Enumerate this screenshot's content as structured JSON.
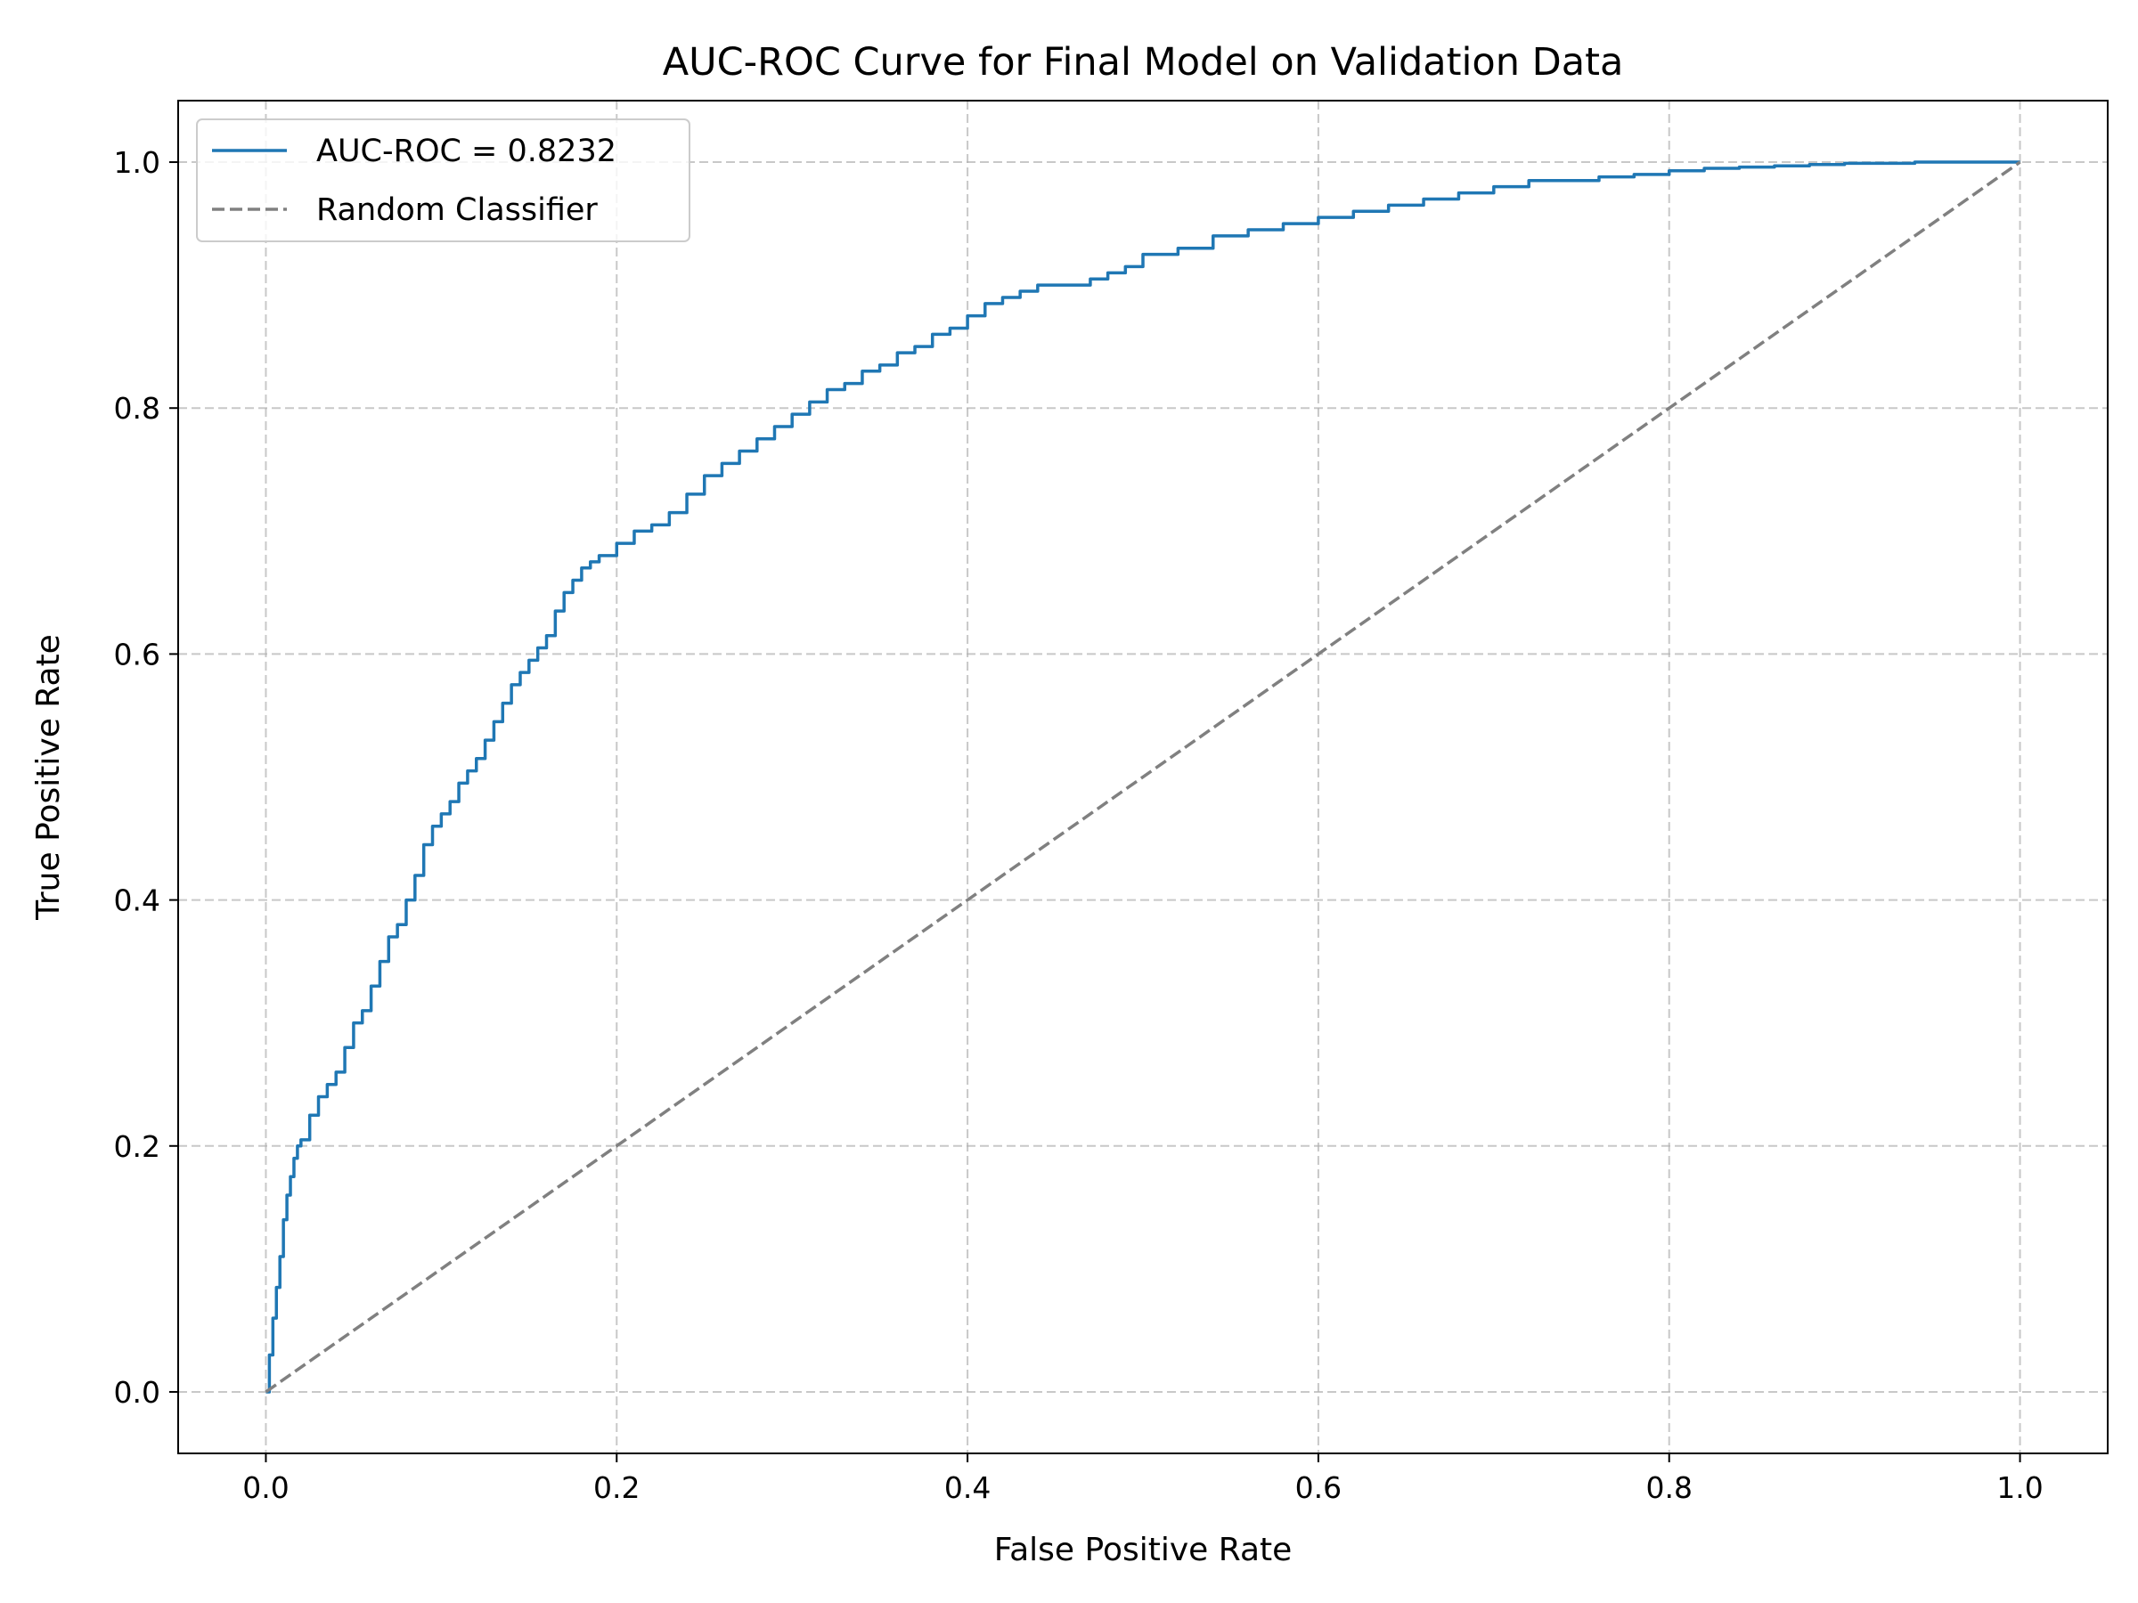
{
  "chart_data": {
    "type": "line",
    "title": "AUC-ROC Curve for Final Model on Validation Data",
    "xlabel": "False Positive Rate",
    "ylabel": "True Positive Rate",
    "xlim": [
      -0.05,
      1.05
    ],
    "ylim": [
      -0.05,
      1.05
    ],
    "grid": true,
    "grid_style": "dashed",
    "legend_position": "upper left",
    "x_ticks": [
      0.0,
      0.2,
      0.4,
      0.6,
      0.8,
      1.0
    ],
    "y_ticks": [
      0.0,
      0.2,
      0.4,
      0.6,
      0.8,
      1.0
    ],
    "x_tick_labels": [
      "0.0",
      "0.2",
      "0.4",
      "0.6",
      "0.8",
      "1.0"
    ],
    "y_tick_labels": [
      "0.0",
      "0.2",
      "0.4",
      "0.6",
      "0.8",
      "1.0"
    ],
    "series": [
      {
        "name": "AUC-ROC = 0.8232",
        "color": "#1f77b4",
        "line_style": "solid",
        "step": true,
        "x": [
          0.0,
          0.002,
          0.004,
          0.006,
          0.008,
          0.01,
          0.012,
          0.014,
          0.016,
          0.018,
          0.02,
          0.025,
          0.03,
          0.035,
          0.04,
          0.045,
          0.05,
          0.055,
          0.06,
          0.065,
          0.07,
          0.075,
          0.08,
          0.085,
          0.09,
          0.095,
          0.1,
          0.105,
          0.11,
          0.115,
          0.12,
          0.125,
          0.13,
          0.135,
          0.14,
          0.145,
          0.15,
          0.155,
          0.16,
          0.165,
          0.17,
          0.175,
          0.18,
          0.185,
          0.19,
          0.2,
          0.21,
          0.22,
          0.23,
          0.24,
          0.25,
          0.26,
          0.27,
          0.28,
          0.29,
          0.3,
          0.31,
          0.32,
          0.33,
          0.34,
          0.35,
          0.36,
          0.37,
          0.38,
          0.39,
          0.4,
          0.41,
          0.42,
          0.43,
          0.44,
          0.45,
          0.46,
          0.47,
          0.48,
          0.49,
          0.5,
          0.52,
          0.54,
          0.56,
          0.58,
          0.6,
          0.62,
          0.64,
          0.66,
          0.68,
          0.7,
          0.72,
          0.74,
          0.76,
          0.78,
          0.8,
          0.82,
          0.84,
          0.86,
          0.88,
          0.9,
          0.92,
          0.94,
          0.96,
          0.98,
          1.0
        ],
        "y": [
          0.0,
          0.03,
          0.06,
          0.085,
          0.11,
          0.14,
          0.16,
          0.175,
          0.19,
          0.2,
          0.205,
          0.225,
          0.24,
          0.25,
          0.26,
          0.28,
          0.3,
          0.31,
          0.33,
          0.35,
          0.37,
          0.38,
          0.4,
          0.42,
          0.445,
          0.46,
          0.47,
          0.48,
          0.495,
          0.505,
          0.515,
          0.53,
          0.545,
          0.56,
          0.575,
          0.585,
          0.595,
          0.605,
          0.615,
          0.635,
          0.65,
          0.66,
          0.67,
          0.675,
          0.68,
          0.69,
          0.7,
          0.705,
          0.715,
          0.73,
          0.745,
          0.755,
          0.765,
          0.775,
          0.785,
          0.795,
          0.805,
          0.815,
          0.82,
          0.83,
          0.835,
          0.845,
          0.85,
          0.86,
          0.865,
          0.875,
          0.885,
          0.89,
          0.895,
          0.9,
          0.9,
          0.9,
          0.905,
          0.91,
          0.915,
          0.925,
          0.93,
          0.94,
          0.945,
          0.95,
          0.955,
          0.96,
          0.965,
          0.97,
          0.975,
          0.98,
          0.985,
          0.985,
          0.988,
          0.99,
          0.993,
          0.995,
          0.996,
          0.997,
          0.998,
          0.999,
          0.999,
          1.0,
          1.0,
          1.0,
          1.0
        ]
      },
      {
        "name": "Random Classifier",
        "color": "#808080",
        "line_style": "dashed",
        "x": [
          0.0,
          1.0
        ],
        "y": [
          0.0,
          1.0
        ]
      }
    ]
  }
}
